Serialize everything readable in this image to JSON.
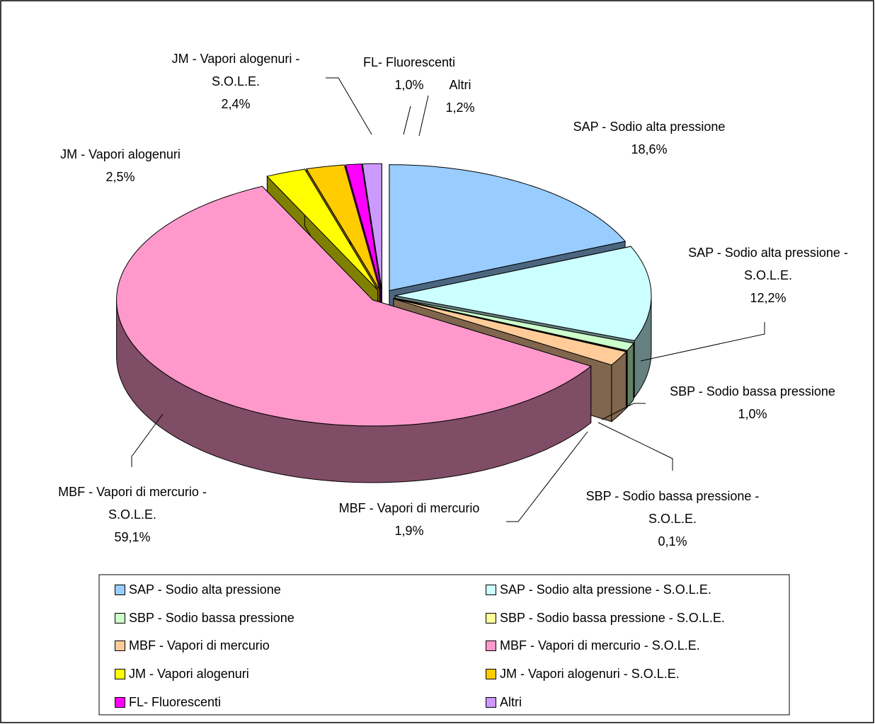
{
  "chart_data": {
    "type": "pie3d",
    "categories": [
      "SAP - Sodio alta pressione",
      "SAP - Sodio alta pressione - S.O.L.E.",
      "SBP - Sodio bassa pressione",
      "SBP - Sodio bassa pressione - S.O.L.E.",
      "MBF - Vapori di mercurio",
      "MBF - Vapori di mercurio - S.O.L.E.",
      "JM - Vapori alogenuri",
      "JM - Vapori alogenuri - S.O.L.E.",
      "FL- Fluorescenti",
      "Altri"
    ],
    "values": [
      18.6,
      12.2,
      1.0,
      0.1,
      1.9,
      59.1,
      2.5,
      2.4,
      1.0,
      1.2
    ],
    "value_labels": [
      "18,6%",
      "12,2%",
      "1,0%",
      "0,1%",
      "1,9%",
      "59,1%",
      "2,5%",
      "2,4%",
      "1,0%",
      "1,2%"
    ],
    "colors": [
      "#99ccff",
      "#ccffff",
      "#ccffcc",
      "#ffff99",
      "#ffcc99",
      "#ff99cc",
      "#ffff00",
      "#ffcc00",
      "#ff00ff",
      "#cc99ff"
    ],
    "legend": "bottom"
  }
}
